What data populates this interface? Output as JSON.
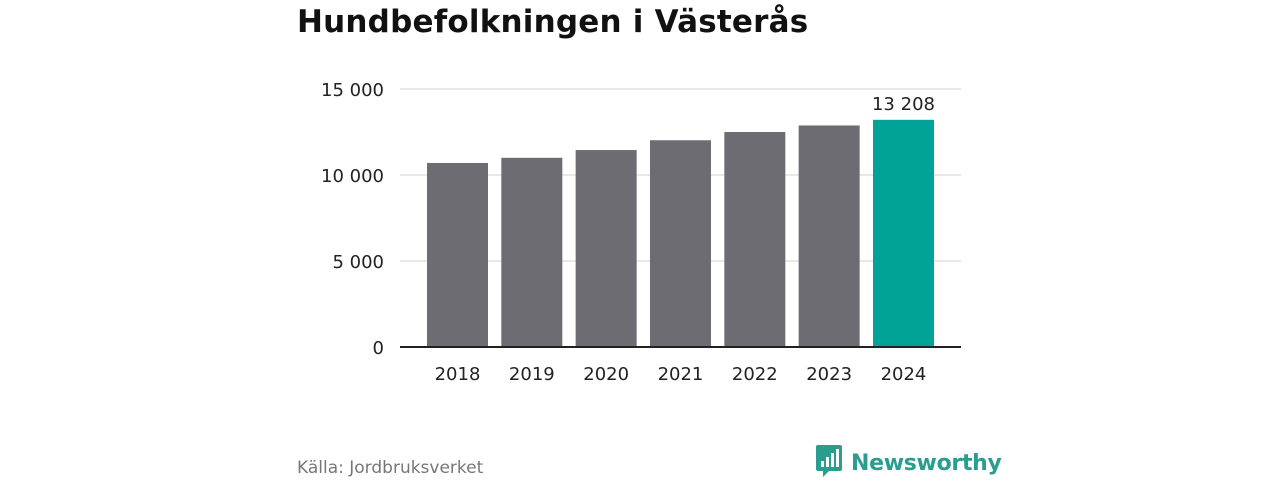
{
  "title": "Hundbefolkningen i Västerås",
  "source": "Källa: Jordbruksverket",
  "brand": {
    "name": "Newsworthy",
    "icon": "newsworthy-logo-icon"
  },
  "colors": {
    "bar": "#6d6c72",
    "highlight": "#00a396",
    "grid": "#d9d9d9",
    "axis": "#222222",
    "brand": "#2a9d8f"
  },
  "chart_data": {
    "type": "bar",
    "categories": [
      "2018",
      "2019",
      "2020",
      "2021",
      "2022",
      "2023",
      "2024"
    ],
    "values": [
      10700,
      11000,
      11450,
      12020,
      12500,
      12880,
      13208
    ],
    "highlight_index": 6,
    "data_labels": [
      {
        "index": 6,
        "text": "13 208"
      }
    ],
    "ylim": [
      0,
      15000
    ],
    "yticks": [
      {
        "value": 0,
        "label": "0"
      },
      {
        "value": 5000,
        "label": "5 000"
      },
      {
        "value": 10000,
        "label": "10 000"
      },
      {
        "value": 15000,
        "label": "15 000"
      }
    ],
    "grid": true,
    "title": "Hundbefolkningen i Västerås",
    "xlabel": "",
    "ylabel": ""
  }
}
